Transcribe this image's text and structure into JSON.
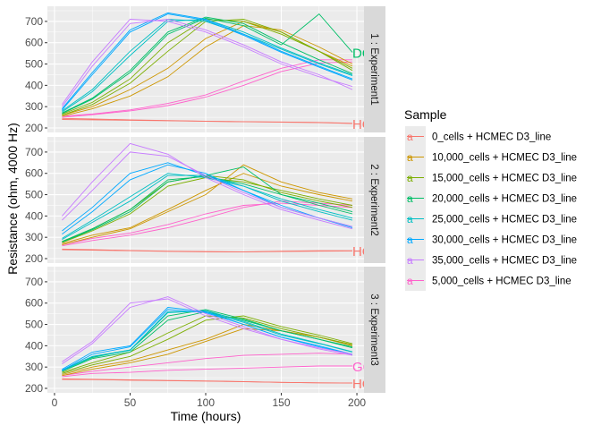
{
  "chart_data": {
    "type": "line",
    "xlabel": "Time (hours)",
    "ylabel": "Resistance (ohm, 4000 Hz)",
    "xlim": [
      -4.7,
      204.7
    ],
    "ylim": [
      179,
      771
    ],
    "x_ticks": [
      0,
      50,
      100,
      150,
      200
    ],
    "y_ticks": [
      200,
      300,
      400,
      500,
      600,
      700
    ],
    "grid": true,
    "legend": {
      "title": "Sample",
      "placement": "right"
    },
    "samples": [
      {
        "name": "0_cells + HCMEC D3_line",
        "color": "#F8766D"
      },
      {
        "name": "10,000_cells + HCMEC D3_line",
        "color": "#CD9600"
      },
      {
        "name": "15,000_cells + HCMEC D3_line",
        "color": "#7CAE00"
      },
      {
        "name": "20,000_cells + HCMEC D3_line",
        "color": "#00BE67"
      },
      {
        "name": "25,000_cells + HCMEC D3_line",
        "color": "#00BFC4"
      },
      {
        "name": "30,000_cells + HCMEC D3_line",
        "color": "#00A9FF"
      },
      {
        "name": "35,000_cells + HCMEC D3_line",
        "color": "#C77CFF"
      },
      {
        "name": "5,000_cells + HCMEC D3_line",
        "color": "#FF61CC"
      }
    ],
    "x": [
      5,
      25,
      50,
      75,
      100,
      125,
      150,
      175,
      197
    ],
    "panels": [
      {
        "strip": "1 : Experiment1",
        "series": [
          {
            "sample": 0,
            "values": [
              245,
              242,
              238,
              235,
              232,
              230,
              228,
              226,
              222
            ]
          },
          {
            "sample": 0,
            "values": [
              240,
              238,
              236,
              234,
              231,
              229,
              227,
              225,
              221
            ]
          },
          {
            "sample": 7,
            "values": [
              255,
              265,
              285,
              315,
              355,
              420,
              480,
              520,
              520
            ]
          },
          {
            "sample": 7,
            "values": [
              250,
              262,
              280,
              305,
              345,
              400,
              465,
              505,
              510
            ]
          },
          {
            "sample": 1,
            "values": [
              260,
              300,
              380,
              480,
              620,
              700,
              650,
              560,
              490
            ]
          },
          {
            "sample": 1,
            "values": [
              255,
              290,
              350,
              440,
              580,
              680,
              660,
              580,
              500
            ]
          },
          {
            "sample": 2,
            "values": [
              265,
              320,
              430,
              600,
              710,
              700,
              640,
              560,
              480
            ]
          },
          {
            "sample": 2,
            "values": [
              260,
              310,
              410,
              560,
              700,
              710,
              650,
              560,
              470
            ]
          },
          {
            "sample": 3,
            "values": [
              270,
              340,
              470,
              650,
              720,
              690,
              600,
              520,
              455
            ]
          },
          {
            "sample": 3,
            "values": [
              268,
              335,
              460,
              640,
              715,
              680,
              590,
              735,
              555
            ]
          },
          {
            "sample": 4,
            "values": [
              280,
              380,
              560,
              710,
              700,
              640,
              570,
              500,
              445
            ]
          },
          {
            "sample": 4,
            "values": [
              275,
              370,
              540,
              700,
              710,
              650,
              575,
              505,
              450
            ]
          },
          {
            "sample": 5,
            "values": [
              290,
              460,
              660,
              740,
              710,
              640,
              560,
              490,
              430
            ]
          },
          {
            "sample": 5,
            "values": [
              285,
              450,
              650,
              735,
              705,
              635,
              555,
              485,
              425
            ]
          },
          {
            "sample": 6,
            "values": [
              310,
              510,
              710,
              700,
              650,
              580,
              500,
              440,
              395
            ]
          },
          {
            "sample": 6,
            "values": [
              300,
              490,
              690,
              710,
              660,
              590,
              510,
              450,
              380
            ]
          }
        ],
        "end_labels": [
          {
            "text": "DC",
            "sample": 3,
            "value": 555
          },
          {
            "text": "HC",
            "sample": 0,
            "value": 220
          }
        ]
      },
      {
        "strip": "2 : Experiment2",
        "series": [
          {
            "sample": 0,
            "values": [
              245,
              242,
              238,
              235,
              233,
              232,
              235,
              237,
              237
            ]
          },
          {
            "sample": 0,
            "values": [
              242,
              240,
              237,
              234,
              232,
              231,
              233,
              235,
              236
            ]
          },
          {
            "sample": 7,
            "values": [
              265,
              295,
              320,
              360,
              410,
              450,
              460,
              450,
              440
            ]
          },
          {
            "sample": 7,
            "values": [
              260,
              285,
              310,
              345,
              390,
              440,
              470,
              460,
              450
            ]
          },
          {
            "sample": 1,
            "values": [
              270,
              310,
              345,
              430,
              520,
              600,
              540,
              500,
              470
            ]
          },
          {
            "sample": 1,
            "values": [
              265,
              300,
              340,
              420,
              500,
              640,
              560,
              510,
              480
            ]
          },
          {
            "sample": 2,
            "values": [
              275,
              330,
              410,
              540,
              580,
              560,
              520,
              480,
              450
            ]
          },
          {
            "sample": 2,
            "values": [
              280,
              340,
              430,
              560,
              590,
              570,
              510,
              470,
              440
            ]
          },
          {
            "sample": 3,
            "values": [
              280,
              340,
              430,
              570,
              585,
              550,
              500,
              460,
              420
            ]
          },
          {
            "sample": 3,
            "values": [
              278,
              335,
              420,
              560,
              590,
              630,
              500,
              450,
              410
            ]
          },
          {
            "sample": 4,
            "values": [
              295,
              380,
              490,
              600,
              580,
              540,
              480,
              430,
              390
            ]
          },
          {
            "sample": 4,
            "values": [
              290,
              370,
              470,
              590,
              590,
              540,
              470,
              420,
              380
            ]
          },
          {
            "sample": 5,
            "values": [
              330,
              440,
              600,
              650,
              590,
              520,
              440,
              390,
              350
            ]
          },
          {
            "sample": 5,
            "values": [
              315,
              420,
              570,
              640,
              600,
              520,
              450,
              390,
              345
            ]
          },
          {
            "sample": 6,
            "values": [
              400,
              560,
              740,
              690,
              580,
              500,
              430,
              380,
              340
            ]
          },
          {
            "sample": 6,
            "values": [
              380,
              520,
              700,
              680,
              590,
              510,
              440,
              390,
              350
            ]
          }
        ],
        "end_labels": [
          {
            "text": "HC",
            "sample": 0,
            "value": 237
          }
        ]
      },
      {
        "strip": "3 : Experiment3",
        "series": [
          {
            "sample": 0,
            "values": [
              245,
              243,
              240,
              237,
              235,
              232,
              228,
              226,
              225
            ]
          },
          {
            "sample": 0,
            "values": [
              242,
              241,
              238,
              236,
              234,
              231,
              228,
              226,
              225
            ]
          },
          {
            "sample": 7,
            "values": [
              255,
              270,
              275,
              285,
              290,
              295,
              300,
              305,
              305
            ]
          },
          {
            "sample": 7,
            "values": [
              260,
              280,
              300,
              320,
              340,
              355,
              360,
              365,
              360
            ]
          },
          {
            "sample": 1,
            "values": [
              265,
              300,
              330,
              380,
              430,
              500,
              470,
              440,
              405
            ]
          },
          {
            "sample": 1,
            "values": [
              260,
              290,
              320,
              360,
              420,
              480,
              470,
              440,
              400
            ]
          },
          {
            "sample": 2,
            "values": [
              270,
              310,
              350,
              430,
              520,
              540,
              490,
              450,
              410
            ]
          },
          {
            "sample": 2,
            "values": [
              275,
              320,
              370,
              460,
              540,
              530,
              480,
              440,
              405
            ]
          },
          {
            "sample": 3,
            "values": [
              280,
              340,
              370,
              520,
              560,
              520,
              470,
              430,
              390
            ]
          },
          {
            "sample": 3,
            "values": [
              285,
              345,
              380,
              540,
              570,
              525,
              470,
              430,
              395
            ]
          },
          {
            "sample": 4,
            "values": [
              285,
              350,
              380,
              560,
              560,
              510,
              450,
              410,
              370
            ]
          },
          {
            "sample": 4,
            "values": [
              282,
              348,
              378,
              555,
              565,
              515,
              455,
              412,
              372
            ]
          },
          {
            "sample": 5,
            "values": [
              290,
              370,
              400,
              580,
              560,
              500,
              440,
              400,
              360
            ]
          },
          {
            "sample": 5,
            "values": [
              285,
              360,
              395,
              570,
              555,
              500,
              440,
              395,
              360
            ]
          },
          {
            "sample": 6,
            "values": [
              325,
              420,
              600,
              620,
              540,
              480,
              430,
              390,
              360
            ]
          },
          {
            "sample": 6,
            "values": [
              315,
              410,
              580,
              630,
              550,
              490,
              430,
              385,
              355
            ]
          }
        ],
        "end_labels": [
          {
            "text": "GC",
            "sample": 7,
            "value": 305
          },
          {
            "text": "HC",
            "sample": 0,
            "value": 225
          }
        ]
      }
    ]
  }
}
